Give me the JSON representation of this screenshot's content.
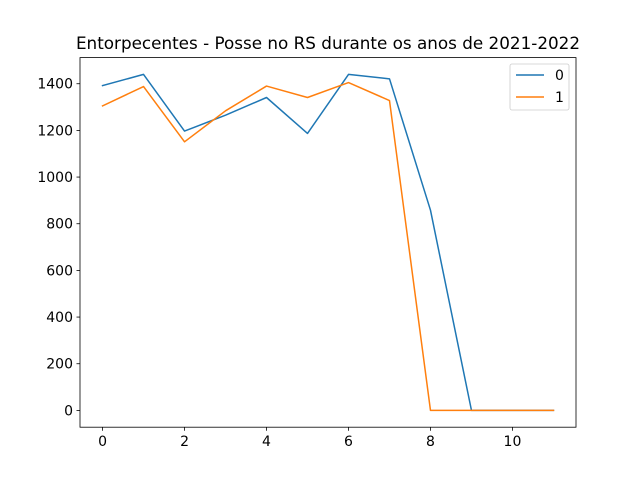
{
  "chart_data": {
    "type": "line",
    "title": "Entorpecentes - Posse no RS durante os anos de 2021-2022",
    "xlabel": "",
    "ylabel": "",
    "x": [
      0,
      1,
      2,
      3,
      4,
      5,
      6,
      7,
      8,
      9,
      10,
      11
    ],
    "xlim": [
      -0.55,
      11.55
    ],
    "ylim": [
      -72,
      1512
    ],
    "xticks": [
      0,
      2,
      4,
      6,
      8,
      10
    ],
    "yticks": [
      0,
      200,
      400,
      600,
      800,
      1000,
      1200,
      1400
    ],
    "grid": false,
    "legend_position": "upper right",
    "series": [
      {
        "name": "0",
        "color": "#1f77b4",
        "values": [
          1392,
          1440,
          1197,
          1265,
          1341,
          1187,
          1440,
          1421,
          858,
          0,
          0,
          0
        ]
      },
      {
        "name": "1",
        "color": "#ff7f0e",
        "values": [
          1305,
          1388,
          1151,
          1284,
          1390,
          1341,
          1405,
          1328,
          0,
          0,
          0,
          0
        ]
      }
    ]
  }
}
